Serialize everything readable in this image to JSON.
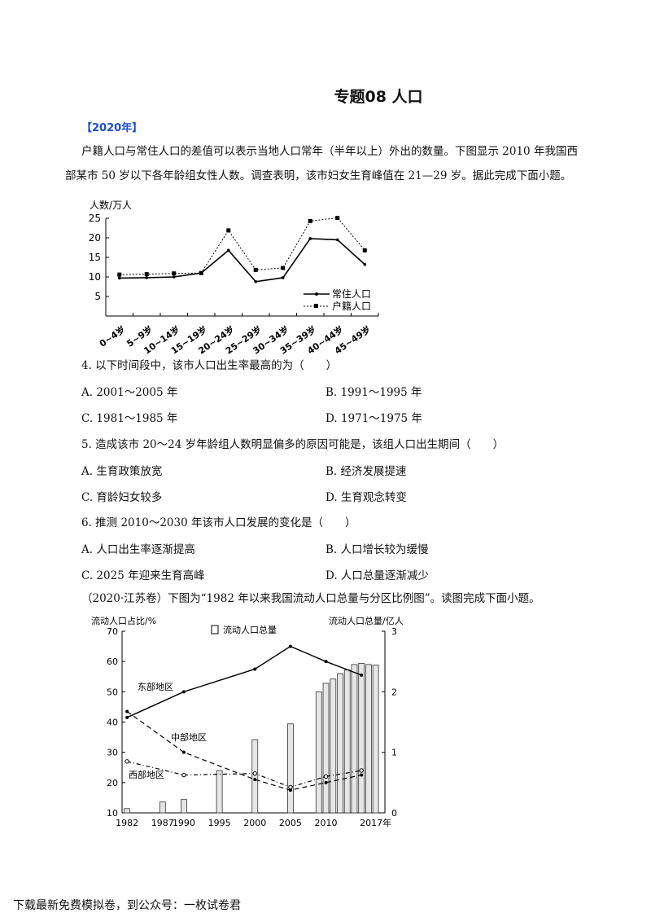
{
  "title": "专题08 人口",
  "section_year": "【2020年】",
  "intro": {
    "line1": "户籍人口与常住人口的差值可以表示当地人口常年（半年以上）外出的数量。下图显示 2010 年我国西",
    "line2": "部某市 50 岁以下各年龄组女性人数。调查表明，该市妇女生育峰值在 21—29 岁。据此完成下面小题。"
  },
  "questions": [
    {
      "stem": "4. 以下时间段中，该市人口出生率最高的为（　　）",
      "options": [
        "A. 2001～2005 年",
        "B. 1991～1995 年",
        "C. 1981～1985 年",
        "D. 1971～1975 年"
      ]
    },
    {
      "stem": "5. 造成该市 20～24 岁年龄组人数明显偏多的原因可能是，该组人口出生期间（　　）",
      "options": [
        "A.  生育政策放宽",
        "B.  经济发展提速",
        "C.  育龄妇女较多",
        "D.  生育观念转变"
      ]
    },
    {
      "stem": "6. 推测 2010～2030 年该市人口发展的变化是（　　）",
      "options": [
        "A.  人口出生率逐渐提高",
        "B.  人口增长较为缓慢",
        "C. 2025 年迎来生育高峰",
        "D.  人口总量逐渐减少"
      ]
    }
  ],
  "intro2": "（2020·江苏卷）下图为“1982 年以来我国流动人口总量与分区比例图”。读图完成下面小题。",
  "footer": "下载最新免费模拟卷，到公众号：一枚试卷君",
  "chart_data": [
    {
      "type": "line",
      "ylabel": "人数/万人",
      "ylim": [
        0,
        25
      ],
      "yticks": [
        5,
        10,
        15,
        20,
        25
      ],
      "categories": [
        "0~4岁",
        "5~9岁",
        "10~14岁",
        "15~19岁",
        "20~24岁",
        "25~29岁",
        "30~34岁",
        "35~39岁",
        "40~44岁",
        "45~49岁"
      ],
      "series": [
        {
          "name": "常住人口",
          "values": [
            9.7,
            9.8,
            10.0,
            11.0,
            16.8,
            8.8,
            9.8,
            19.8,
            19.5,
            13.2
          ]
        },
        {
          "name": "户籍人口",
          "values": [
            10.6,
            10.7,
            10.9,
            11.0,
            21.9,
            11.8,
            12.3,
            24.3,
            25.1,
            16.8
          ]
        }
      ]
    },
    {
      "type": "bar+line",
      "ylabel_left": "流动人口占比/%",
      "ylabel_right": "流动人口总量/亿人",
      "xlabel_suffix": "年",
      "left_ylim": [
        10,
        70
      ],
      "left_yticks": [
        10,
        20,
        30,
        40,
        50,
        60,
        70
      ],
      "right_ylim": [
        0,
        3
      ],
      "right_yticks": [
        0,
        1,
        2,
        3
      ],
      "xticks": [
        "1982",
        "1987",
        "1990",
        "1995",
        "2000",
        "2005",
        "2010",
        "2017年"
      ],
      "bar_series": {
        "name": "流动人口总量",
        "x": [
          1982,
          1987,
          1990,
          1995,
          2000,
          2005,
          2009,
          2010,
          2011,
          2012,
          2013,
          2014,
          2015,
          2016,
          2017
        ],
        "values": [
          0.07,
          0.18,
          0.22,
          0.7,
          1.21,
          1.47,
          2.0,
          2.14,
          2.21,
          2.3,
          2.36,
          2.45,
          2.47,
          2.45,
          2.44
        ]
      },
      "line_series": [
        {
          "name": "东部地区",
          "x": [
            1982,
            1990,
            2000,
            2005,
            2010,
            2015
          ],
          "values": [
            41.5,
            50,
            57.5,
            65,
            60,
            55.5
          ]
        },
        {
          "name": "中部地区",
          "x": [
            1982,
            1990,
            2000,
            2005,
            2010,
            2015
          ],
          "values": [
            43.5,
            30,
            21,
            17.5,
            20,
            22.5
          ]
        },
        {
          "name": "西部地区",
          "x": [
            1982,
            1990,
            2000,
            2005,
            2010,
            2015
          ],
          "values": [
            27,
            22.5,
            23,
            18.5,
            22,
            24
          ]
        }
      ]
    }
  ]
}
